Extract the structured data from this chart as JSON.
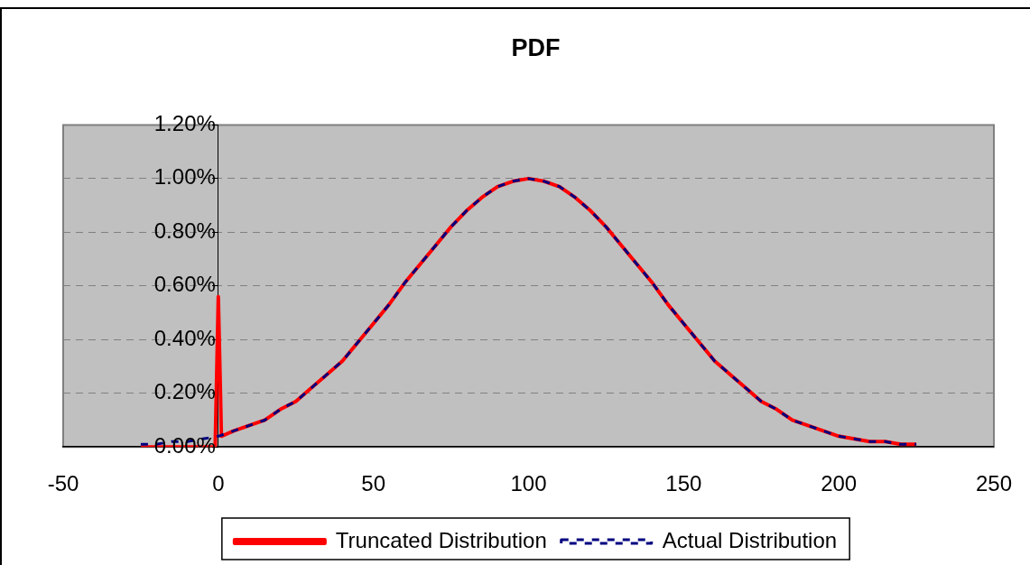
{
  "chart_data": {
    "type": "line",
    "title": "PDF",
    "xlim": [
      -50,
      250
    ],
    "xticks": [
      -50,
      0,
      50,
      100,
      150,
      200,
      250
    ],
    "ylim": [
      0,
      1.2
    ],
    "yticks": [
      {
        "value": 0,
        "label": "0.00%"
      },
      {
        "value": 0.2,
        "label": "0.20%"
      },
      {
        "value": 0.4,
        "label": "0.40%"
      },
      {
        "value": 0.6,
        "label": "0.60%"
      },
      {
        "value": 0.8,
        "label": "0.80%"
      },
      {
        "value": 1.0,
        "label": "1.00%"
      },
      {
        "value": 1.2,
        "label": "1.20%"
      }
    ],
    "grid": "y",
    "legend": "bottom",
    "marker": "none",
    "series": [
      {
        "name": "Truncated Distribution",
        "color": "#ff0000",
        "line_style": "solid",
        "x": [
          -25,
          -20,
          -15,
          -10,
          -5,
          -1,
          0,
          1,
          5,
          10,
          15,
          20,
          25,
          30,
          35,
          40,
          45,
          50,
          55,
          60,
          65,
          70,
          75,
          80,
          85,
          90,
          95,
          100,
          105,
          110,
          115,
          120,
          125,
          130,
          135,
          140,
          145,
          150,
          155,
          160,
          165,
          170,
          175,
          180,
          185,
          190,
          195,
          200,
          205,
          210,
          215,
          220,
          225
        ],
        "values": [
          0,
          0,
          0,
          0,
          0,
          0,
          0.56,
          0.04,
          0.06,
          0.08,
          0.1,
          0.14,
          0.17,
          0.22,
          0.27,
          0.32,
          0.39,
          0.46,
          0.53,
          0.61,
          0.68,
          0.75,
          0.82,
          0.88,
          0.93,
          0.97,
          0.99,
          1.0,
          0.99,
          0.97,
          0.93,
          0.88,
          0.82,
          0.75,
          0.68,
          0.61,
          0.53,
          0.46,
          0.39,
          0.32,
          0.27,
          0.22,
          0.17,
          0.14,
          0.1,
          0.08,
          0.06,
          0.04,
          0.03,
          0.02,
          0.02,
          0.01,
          0.01
        ]
      },
      {
        "name": "Actual Distribution",
        "color": "#000080",
        "line_style": "dashed",
        "x": [
          -25,
          -20,
          -15,
          -10,
          -5,
          0,
          5,
          10,
          15,
          20,
          25,
          30,
          35,
          40,
          45,
          50,
          55,
          60,
          65,
          70,
          75,
          80,
          85,
          90,
          95,
          100,
          105,
          110,
          115,
          120,
          125,
          130,
          135,
          140,
          145,
          150,
          155,
          160,
          165,
          170,
          175,
          180,
          185,
          190,
          195,
          200,
          205,
          210,
          215,
          220,
          225
        ],
        "values": [
          0.01,
          0.01,
          0.02,
          0.02,
          0.03,
          0.04,
          0.06,
          0.08,
          0.1,
          0.14,
          0.17,
          0.22,
          0.27,
          0.32,
          0.39,
          0.46,
          0.53,
          0.61,
          0.68,
          0.75,
          0.82,
          0.88,
          0.93,
          0.97,
          0.99,
          1.0,
          0.99,
          0.97,
          0.93,
          0.88,
          0.82,
          0.75,
          0.68,
          0.61,
          0.53,
          0.46,
          0.39,
          0.32,
          0.27,
          0.22,
          0.17,
          0.14,
          0.1,
          0.08,
          0.06,
          0.04,
          0.03,
          0.02,
          0.02,
          0.01,
          0.01
        ]
      }
    ]
  }
}
